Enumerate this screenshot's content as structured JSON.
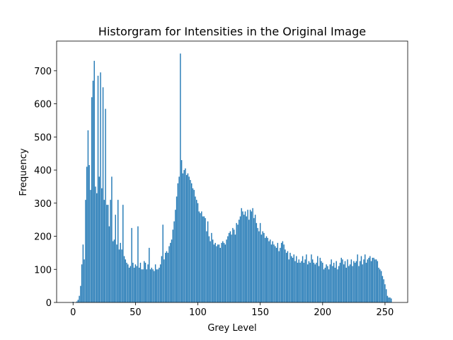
{
  "chart_data": {
    "type": "bar",
    "title": "Historgram for Intensities in the Original Image",
    "xlabel": "Grey Level",
    "ylabel": "Frequency",
    "color": "#1f77b4",
    "x": [
      0,
      1,
      2,
      3,
      4,
      5,
      6,
      7,
      8,
      9,
      10,
      11,
      12,
      13,
      14,
      15,
      16,
      17,
      18,
      19,
      20,
      21,
      22,
      23,
      24,
      25,
      26,
      27,
      28,
      29,
      30,
      31,
      32,
      33,
      34,
      35,
      36,
      37,
      38,
      39,
      40,
      41,
      42,
      43,
      44,
      45,
      46,
      47,
      48,
      49,
      50,
      51,
      52,
      53,
      54,
      55,
      56,
      57,
      58,
      59,
      60,
      61,
      62,
      63,
      64,
      65,
      66,
      67,
      68,
      69,
      70,
      71,
      72,
      73,
      74,
      75,
      76,
      77,
      78,
      79,
      80,
      81,
      82,
      83,
      84,
      85,
      86,
      87,
      88,
      89,
      90,
      91,
      92,
      93,
      94,
      95,
      96,
      97,
      98,
      99,
      100,
      101,
      102,
      103,
      104,
      105,
      106,
      107,
      108,
      109,
      110,
      111,
      112,
      113,
      114,
      115,
      116,
      117,
      118,
      119,
      120,
      121,
      122,
      123,
      124,
      125,
      126,
      127,
      128,
      129,
      130,
      131,
      132,
      133,
      134,
      135,
      136,
      137,
      138,
      139,
      140,
      141,
      142,
      143,
      144,
      145,
      146,
      147,
      148,
      149,
      150,
      151,
      152,
      153,
      154,
      155,
      156,
      157,
      158,
      159,
      160,
      161,
      162,
      163,
      164,
      165,
      166,
      167,
      168,
      169,
      170,
      171,
      172,
      173,
      174,
      175,
      176,
      177,
      178,
      179,
      180,
      181,
      182,
      183,
      184,
      185,
      186,
      187,
      188,
      189,
      190,
      191,
      192,
      193,
      194,
      195,
      196,
      197,
      198,
      199,
      200,
      201,
      202,
      203,
      204,
      205,
      206,
      207,
      208,
      209,
      210,
      211,
      212,
      213,
      214,
      215,
      216,
      217,
      218,
      219,
      220,
      221,
      222,
      223,
      224,
      225,
      226,
      227,
      228,
      229,
      230,
      231,
      232,
      233,
      234,
      235,
      236,
      237,
      238,
      239,
      240,
      241,
      242,
      243,
      244,
      245,
      246,
      247,
      248,
      249,
      250,
      251,
      252,
      253,
      254,
      255
    ],
    "values": [
      2,
      0,
      0,
      3,
      8,
      20,
      50,
      115,
      175,
      130,
      310,
      410,
      520,
      415,
      340,
      620,
      670,
      730,
      350,
      330,
      685,
      380,
      695,
      345,
      650,
      310,
      585,
      295,
      295,
      230,
      310,
      380,
      185,
      190,
      265,
      175,
      310,
      160,
      180,
      160,
      295,
      140,
      130,
      120,
      115,
      105,
      110,
      225,
      120,
      105,
      115,
      110,
      230,
      105,
      120,
      100,
      100,
      125,
      120,
      100,
      115,
      165,
      100,
      105,
      100,
      95,
      115,
      100,
      100,
      105,
      115,
      140,
      235,
      130,
      150,
      155,
      150,
      170,
      180,
      190,
      220,
      245,
      280,
      320,
      360,
      380,
      752,
      430,
      390,
      400,
      405,
      385,
      390,
      380,
      370,
      360,
      345,
      340,
      320,
      310,
      300,
      275,
      270,
      275,
      260,
      260,
      255,
      215,
      245,
      200,
      185,
      210,
      190,
      175,
      180,
      170,
      175,
      175,
      165,
      180,
      185,
      180,
      175,
      190,
      200,
      210,
      215,
      205,
      225,
      220,
      205,
      240,
      235,
      250,
      260,
      285,
      275,
      265,
      275,
      260,
      280,
      250,
      280,
      275,
      285,
      255,
      265,
      240,
      225,
      215,
      240,
      205,
      215,
      210,
      195,
      200,
      195,
      185,
      190,
      175,
      185,
      175,
      170,
      165,
      180,
      155,
      165,
      180,
      185,
      175,
      160,
      150,
      155,
      130,
      150,
      140,
      135,
      145,
      125,
      140,
      120,
      130,
      120,
      125,
      140,
      120,
      130,
      145,
      115,
      125,
      120,
      145,
      130,
      120,
      115,
      120,
      140,
      110,
      135,
      125,
      120,
      100,
      105,
      115,
      110,
      100,
      115,
      130,
      110,
      120,
      105,
      125,
      100,
      110,
      120,
      135,
      130,
      115,
      125,
      105,
      130,
      110,
      115,
      130,
      110,
      125,
      120,
      125,
      145,
      110,
      125,
      140,
      115,
      130,
      145,
      120,
      130,
      135,
      140,
      125,
      135,
      135,
      130,
      130,
      125,
      105,
      100,
      95,
      80,
      70,
      55,
      40,
      20,
      15,
      15,
      12
    ],
    "xlim": [
      -13.19,
      268.19
    ],
    "ylim": [
      0,
      789.6
    ],
    "xticks": [
      0,
      50,
      100,
      150,
      200,
      250
    ],
    "yticks": [
      0,
      100,
      200,
      300,
      400,
      500,
      600,
      700
    ]
  }
}
